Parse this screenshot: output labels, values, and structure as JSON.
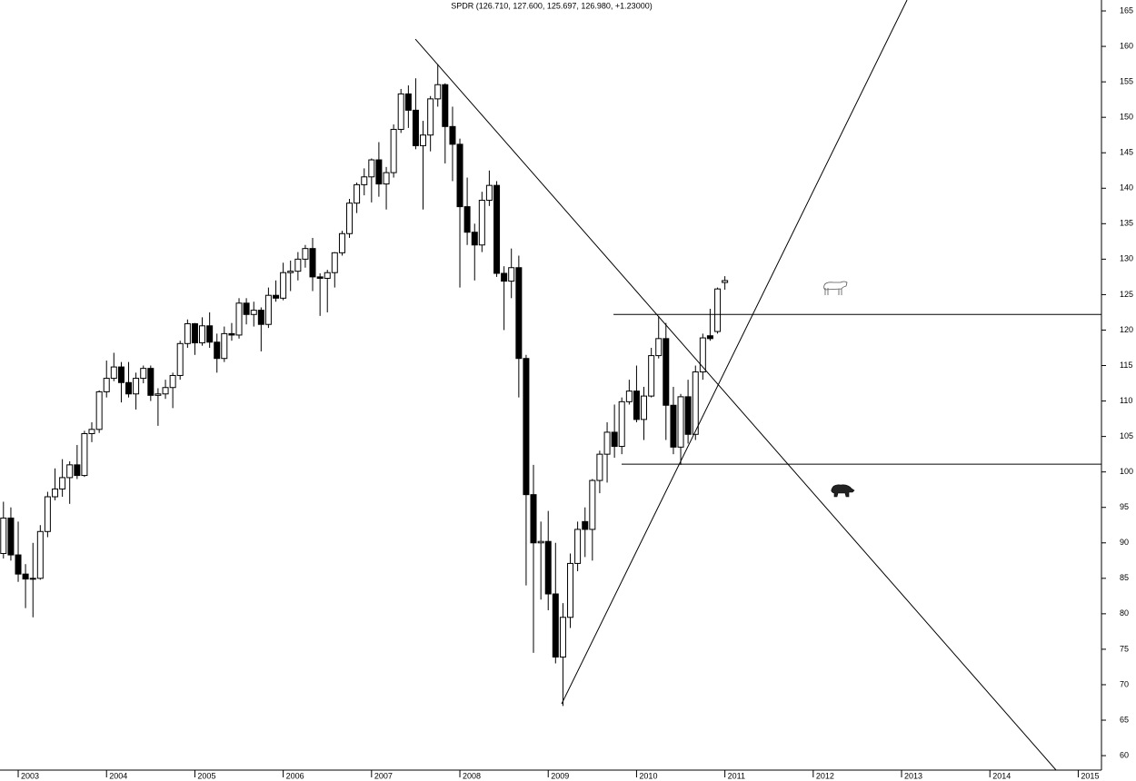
{
  "chart_data": {
    "type": "candlestick",
    "title": "SPDR (126.710, 127.600, 125.697, 126.980, +1.23000)",
    "x": [
      2002.833,
      2002.917,
      2003,
      2003.083,
      2003.167,
      2003.25,
      2003.333,
      2003.417,
      2003.5,
      2003.583,
      2003.667,
      2003.75,
      2003.833,
      2003.917,
      2004,
      2004.083,
      2004.167,
      2004.25,
      2004.333,
      2004.417,
      2004.5,
      2004.583,
      2004.667,
      2004.75,
      2004.833,
      2004.917,
      2005,
      2005.083,
      2005.167,
      2005.25,
      2005.333,
      2005.417,
      2005.5,
      2005.583,
      2005.667,
      2005.75,
      2005.833,
      2005.917,
      2006,
      2006.083,
      2006.167,
      2006.25,
      2006.333,
      2006.417,
      2006.5,
      2006.583,
      2006.667,
      2006.75,
      2006.833,
      2006.917,
      2007,
      2007.083,
      2007.167,
      2007.25,
      2007.333,
      2007.417,
      2007.5,
      2007.583,
      2007.667,
      2007.75,
      2007.833,
      2007.917,
      2008,
      2008.083,
      2008.167,
      2008.25,
      2008.333,
      2008.417,
      2008.5,
      2008.583,
      2008.667,
      2008.75,
      2008.833,
      2008.917,
      2009,
      2009.083,
      2009.167,
      2009.25,
      2009.333,
      2009.417,
      2009.5,
      2009.583,
      2009.667,
      2009.75,
      2009.833,
      2009.917,
      2010,
      2010.083,
      2010.167,
      2010.25,
      2010.333,
      2010.417,
      2010.5,
      2010.583,
      2010.667,
      2010.75,
      2010.833,
      2010.917,
      2011
    ],
    "open": [
      88.5,
      93.5,
      88.3,
      85.6,
      84.9,
      85,
      91.6,
      96.5,
      97.6,
      99.2,
      101,
      99.5,
      105.4,
      106,
      111.3,
      113.2,
      114.8,
      112.6,
      111,
      113.2,
      114.6,
      110.8,
      111,
      111.9,
      113.6,
      118.1,
      120.9,
      118.2,
      120.6,
      118.3,
      116,
      119.5,
      119.3,
      123.8,
      122.2,
      122.8,
      120.8,
      124.9,
      124.5,
      128.1,
      128.3,
      130,
      131.5,
      127.5,
      127.3,
      128.1,
      130.9,
      133.6,
      137.9,
      140.5,
      141.6,
      144,
      140.6,
      142.2,
      148.3,
      153.3,
      151,
      146,
      147.5,
      152.6,
      154.6,
      148.7,
      146.2,
      137.4,
      133.8,
      132,
      138.3,
      140.4,
      128,
      126.9,
      128.8,
      116,
      96.8,
      90,
      90.2,
      82.8,
      73.9,
      79.5,
      87.1,
      93,
      91.9,
      98.8,
      102.5,
      105.6,
      103.6,
      109.9,
      111.4,
      107.4,
      110.7,
      116.4,
      118.8,
      109.4,
      103.5,
      110.6,
      105.3,
      114.1,
      119.2,
      119.8,
      126.71
    ],
    "high": [
      95.8,
      95,
      93,
      87,
      90,
      92.5,
      97.2,
      100.5,
      101.8,
      101.5,
      103.8,
      105.8,
      107,
      111.5,
      115.7,
      116.8,
      115.5,
      115.5,
      114,
      115,
      115,
      111.8,
      113,
      114,
      118.5,
      121.5,
      121,
      121.8,
      122.5,
      119.5,
      120.5,
      121,
      124.5,
      124.5,
      124,
      123.2,
      126,
      127,
      129.5,
      129.8,
      131,
      132,
      133,
      128,
      128.5,
      131,
      134,
      138.5,
      140.8,
      142.8,
      144.2,
      146.5,
      143,
      149,
      154,
      154.5,
      155.5,
      149.5,
      153,
      157.5,
      154.8,
      151.5,
      147,
      141.5,
      135,
      139.5,
      142.5,
      141,
      129,
      131.5,
      130.5,
      116.5,
      101,
      93,
      94.5,
      90,
      81.5,
      88.5,
      93,
      95,
      99,
      103,
      107,
      109.5,
      110.5,
      113,
      115,
      112,
      117.5,
      122,
      121,
      112,
      111,
      113,
      115,
      119.5,
      123,
      126,
      127.6
    ],
    "low": [
      87.8,
      87.5,
      84.5,
      80.8,
      79.5,
      84.8,
      90.8,
      96,
      96.5,
      95.5,
      99,
      99.3,
      104.2,
      105.5,
      110.5,
      112.8,
      109.8,
      110.5,
      108.8,
      112.5,
      110,
      106.5,
      110.3,
      109,
      113,
      117.5,
      116.5,
      117.8,
      117.5,
      114,
      115.5,
      118.5,
      118.8,
      120.8,
      120.5,
      117,
      120.3,
      124,
      124.2,
      125.5,
      127,
      128.8,
      125.5,
      122,
      122.5,
      126,
      130.5,
      133,
      136.5,
      139,
      138,
      138.8,
      137,
      141.5,
      147.8,
      148.5,
      145.5,
      137,
      145.2,
      151.5,
      143.5,
      141,
      126,
      132,
      127,
      131,
      137.5,
      127.5,
      120,
      124.5,
      110.5,
      84,
      74.5,
      82,
      80.5,
      73,
      67,
      78,
      86,
      88,
      87.5,
      97,
      98.5,
      102,
      102.5,
      109.5,
      107,
      104.5,
      110.5,
      116,
      104.5,
      102.5,
      101,
      104,
      104.5,
      113,
      118.5,
      119.5,
      125.697
    ],
    "close": [
      93.5,
      88.3,
      85.6,
      84.9,
      85,
      91.6,
      96.5,
      97.6,
      99.2,
      101,
      99.5,
      105.4,
      106,
      111.3,
      113.2,
      114.8,
      112.6,
      111,
      113.2,
      114.6,
      110.8,
      111,
      111.9,
      113.6,
      118.1,
      120.9,
      118.2,
      120.6,
      118.3,
      116,
      119.5,
      119.3,
      123.8,
      122.2,
      122.8,
      120.8,
      124.9,
      124.5,
      128.1,
      128.3,
      130,
      131.5,
      127.5,
      127.3,
      128.1,
      130.9,
      133.6,
      137.9,
      140.5,
      141.6,
      144,
      140.6,
      142.2,
      148.3,
      153.3,
      151,
      146,
      147.5,
      152.6,
      154.6,
      148.7,
      146.2,
      137.4,
      133.8,
      132,
      138.3,
      140.4,
      128,
      126.9,
      128.8,
      116,
      96.8,
      90,
      90.2,
      82.8,
      73.9,
      79.5,
      87.1,
      91.9,
      91.9,
      98.8,
      102.5,
      105.6,
      103.6,
      109.9,
      111.4,
      107.4,
      110.7,
      116.4,
      118.8,
      109.4,
      103.5,
      110.6,
      105.3,
      114.1,
      118.9,
      118.8,
      125.8,
      126.98
    ],
    "up_color": "#ffffff",
    "down_color": "#000000",
    "lines": [
      {
        "x": [
          2007.496,
          2014.749
        ],
        "y": [
          161.03,
          57.96
        ]
      },
      {
        "x": [
          2009.152,
          2013.062
        ],
        "y": [
          67.3,
          166.54
        ]
      },
      {
        "x": [
          2009.739,
          2015.263
        ],
        "y": [
          122.2,
          122.2
        ]
      },
      {
        "x": [
          2009.831,
          2015.263
        ],
        "y": [
          101.1,
          101.1
        ]
      }
    ],
    "xlim": [
      2002.794,
      2015.263
    ],
    "xticks": [
      2003,
      2004,
      2005,
      2006,
      2007,
      2008,
      2009,
      2010,
      2011,
      2012,
      2013,
      2014,
      2015
    ],
    "ylim": [
      57.96,
      166.54
    ],
    "yticks": [
      60,
      65,
      70,
      75,
      80,
      85,
      90,
      95,
      100,
      105,
      110,
      115,
      120,
      125,
      130,
      135,
      140,
      145,
      150,
      155,
      160,
      165
    ]
  }
}
